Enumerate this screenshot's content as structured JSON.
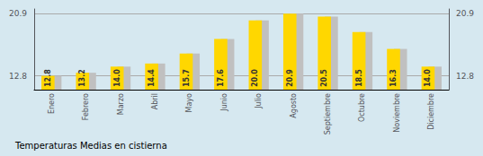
{
  "chart_data": {
    "type": "bar",
    "title": "Temperaturas Medias en cistierna",
    "categories": [
      "Enero",
      "Febrero",
      "Marzo",
      "Abril",
      "Mayo",
      "Junio",
      "Julio",
      "Agosto",
      "Septiembre",
      "Octubre",
      "Noviembre",
      "Diciembre"
    ],
    "series": [
      {
        "color": "#C0C0C0",
        "values": [
          12.8,
          13.2,
          14.0,
          14.4,
          15.7,
          17.6,
          20.0,
          20.9,
          20.5,
          18.5,
          16.3,
          14.0
        ]
      },
      {
        "color": "#FFD700",
        "values": [
          12.8,
          13.2,
          14.0,
          14.4,
          15.7,
          17.6,
          20.0,
          20.9,
          20.5,
          18.5,
          16.3,
          14.0
        ],
        "data_labels": true,
        "value_labels": [
          "12.8",
          "13.2",
          "14.0",
          "14.4",
          "15.7",
          "17.6",
          "20.0",
          "20.9",
          "20.5",
          "18.5",
          "16.3",
          "14.0"
        ]
      }
    ],
    "ylim": [
      11.0,
      21.5
    ],
    "yticks": [
      12.8,
      20.9
    ],
    "y2lim": [
      11.0,
      21.5
    ],
    "y2ticks": [
      12.8,
      20.9
    ],
    "grid": true
  }
}
